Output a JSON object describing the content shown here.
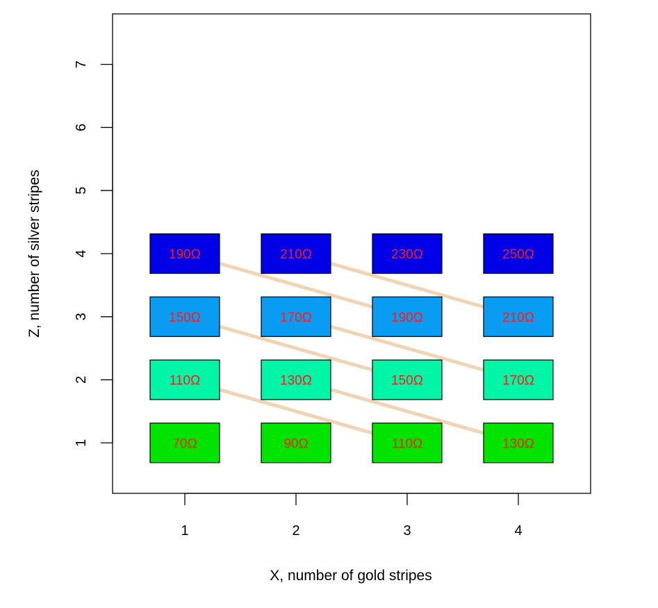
{
  "chart_data": {
    "type": "scatter",
    "title": "",
    "xlabel": "X, number of gold stripes",
    "ylabel": "Z, number of silver stripes",
    "xlim": [
      0.35,
      4.65
    ],
    "ylim": [
      0.2,
      7.8
    ],
    "x_ticks": [
      1,
      2,
      3,
      4
    ],
    "y_ticks": [
      1,
      2,
      3,
      4,
      5,
      6,
      7
    ],
    "grid": false,
    "legend": "none",
    "row_colors": {
      "1": "#00e400",
      "2": "#00f5a6",
      "3": "#0a9cf2",
      "4": "#0000e6"
    },
    "label_color": "#ff1a1a",
    "connector_color": "#f0d4b4",
    "points": [
      {
        "x": 1,
        "z": 1,
        "label": "70Ω"
      },
      {
        "x": 2,
        "z": 1,
        "label": "90Ω"
      },
      {
        "x": 3,
        "z": 1,
        "label": "110Ω"
      },
      {
        "x": 4,
        "z": 1,
        "label": "130Ω"
      },
      {
        "x": 1,
        "z": 2,
        "label": "110Ω"
      },
      {
        "x": 2,
        "z": 2,
        "label": "130Ω"
      },
      {
        "x": 3,
        "z": 2,
        "label": "150Ω"
      },
      {
        "x": 4,
        "z": 2,
        "label": "170Ω"
      },
      {
        "x": 1,
        "z": 3,
        "label": "150Ω"
      },
      {
        "x": 2,
        "z": 3,
        "label": "170Ω"
      },
      {
        "x": 3,
        "z": 3,
        "label": "190Ω"
      },
      {
        "x": 4,
        "z": 3,
        "label": "210Ω"
      },
      {
        "x": 1,
        "z": 4,
        "label": "190Ω"
      },
      {
        "x": 2,
        "z": 4,
        "label": "210Ω"
      },
      {
        "x": 3,
        "z": 4,
        "label": "230Ω"
      },
      {
        "x": 4,
        "z": 4,
        "label": "250Ω"
      }
    ],
    "connectors": [
      {
        "from": [
          1,
          2
        ],
        "to": [
          3,
          1
        ]
      },
      {
        "from": [
          2,
          2
        ],
        "to": [
          4,
          1
        ]
      },
      {
        "from": [
          1,
          3
        ],
        "to": [
          3,
          2
        ]
      },
      {
        "from": [
          2,
          3
        ],
        "to": [
          4,
          2
        ]
      },
      {
        "from": [
          1,
          4
        ],
        "to": [
          3,
          3
        ]
      },
      {
        "from": [
          2,
          4
        ],
        "to": [
          4,
          3
        ]
      }
    ]
  }
}
